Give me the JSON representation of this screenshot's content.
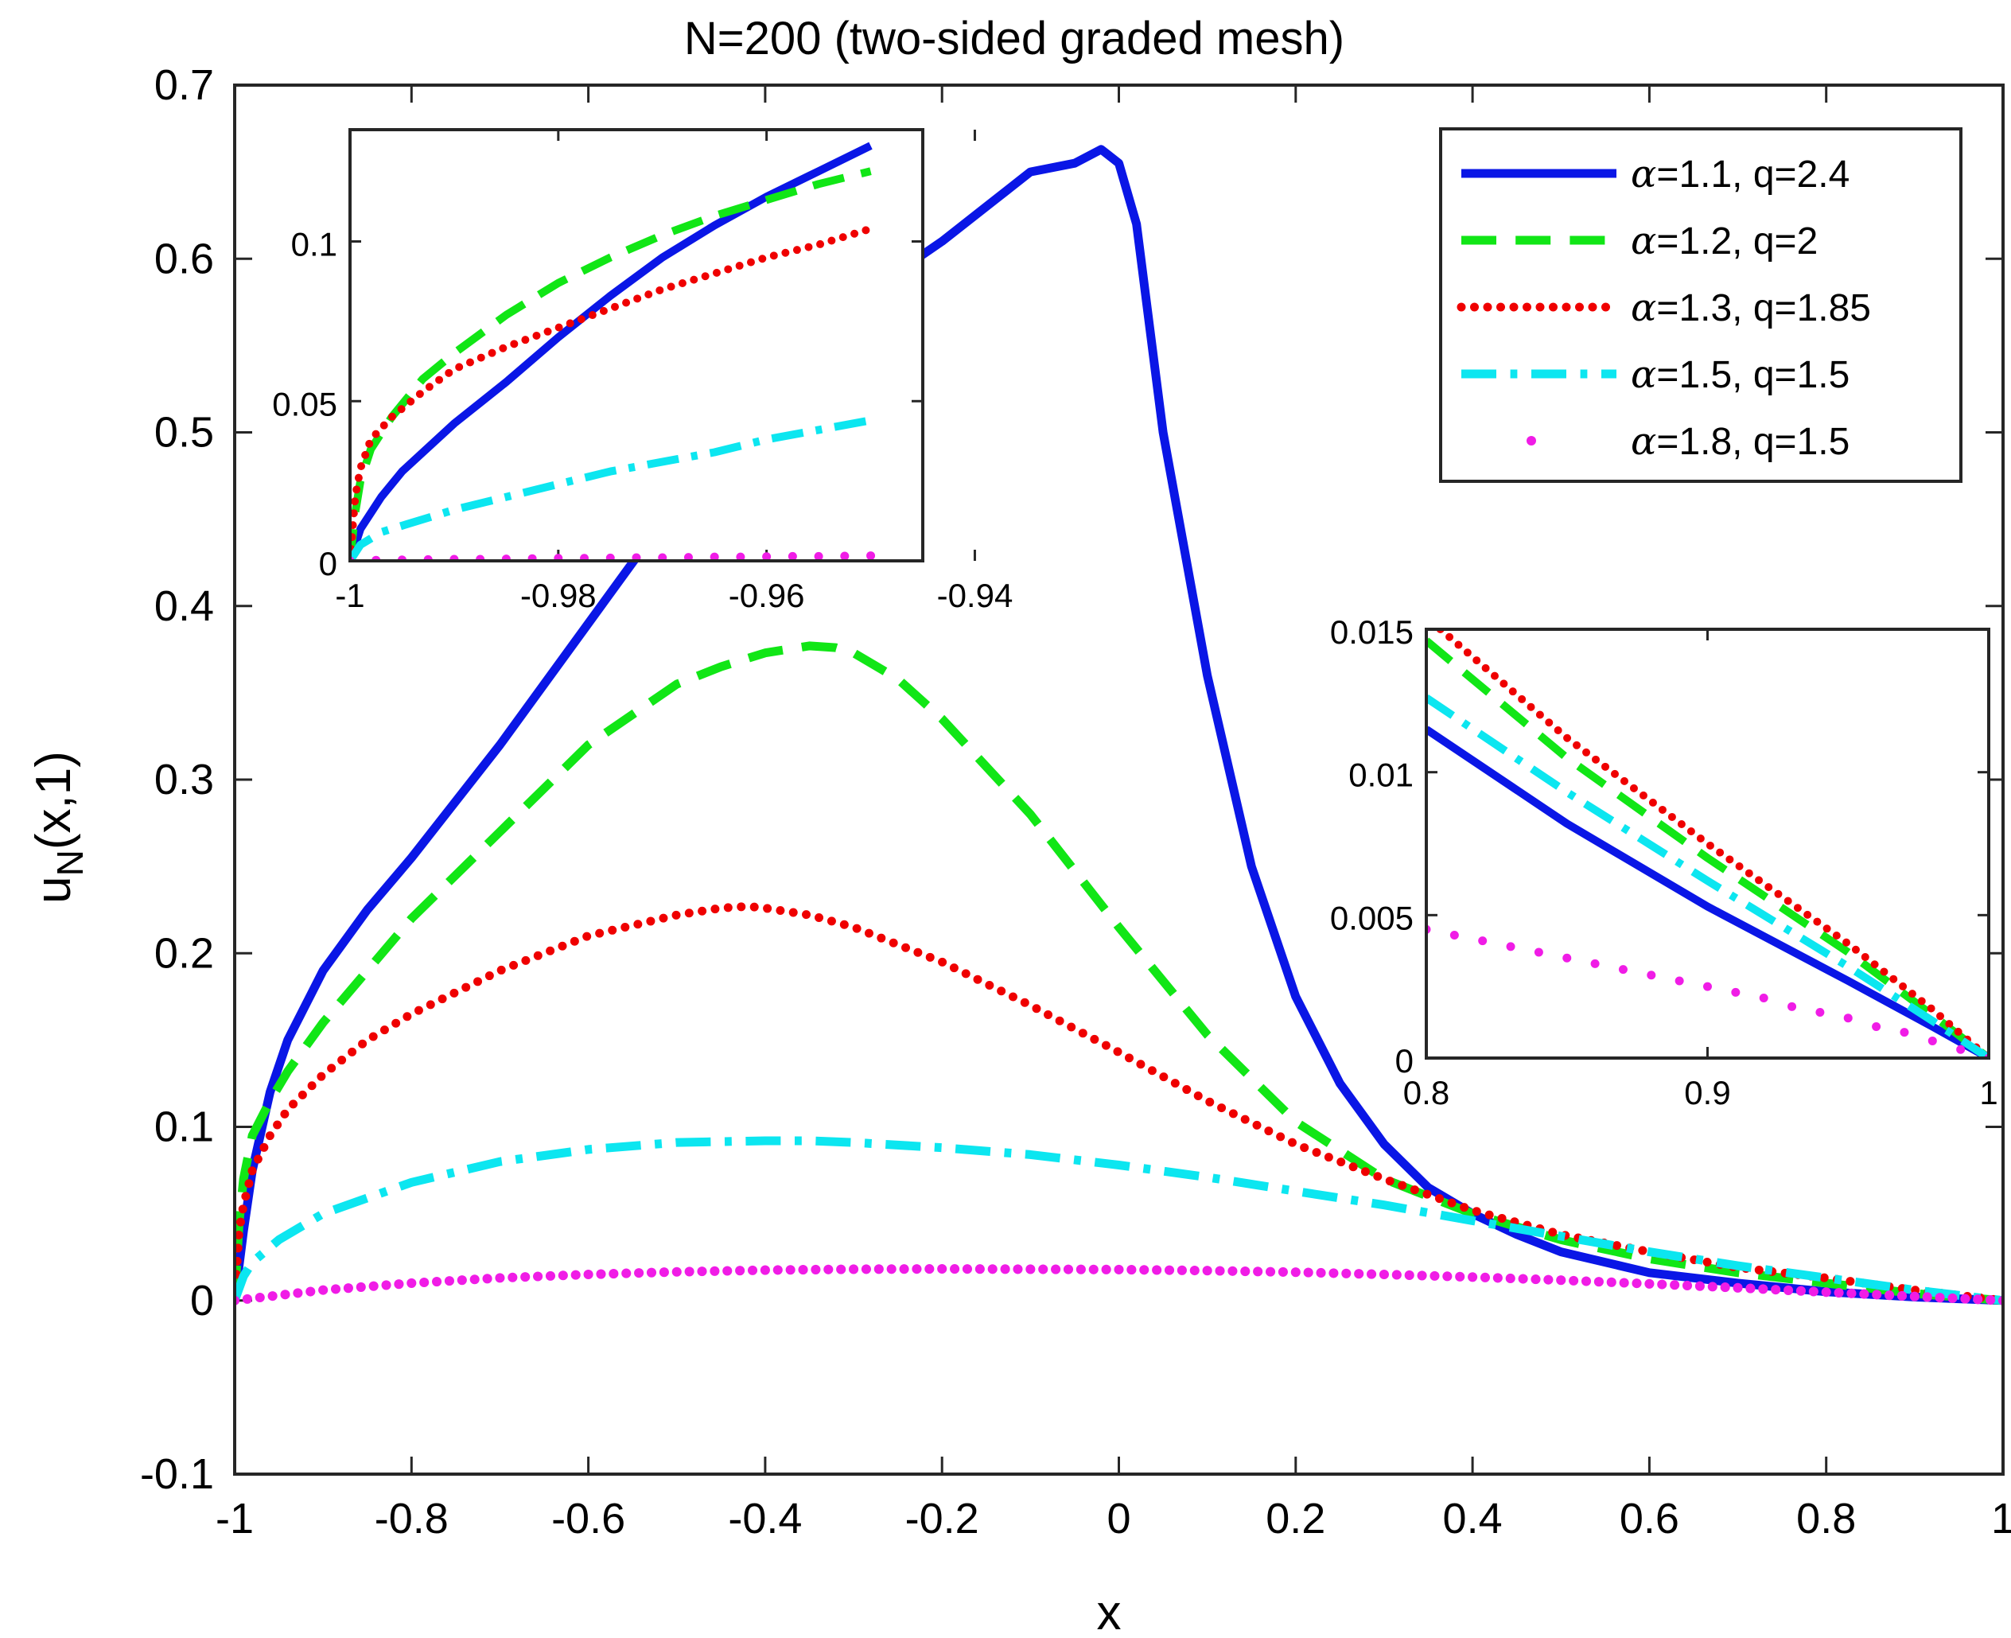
{
  "chart_data": {
    "type": "line",
    "title": "N=200 (two-sided graded mesh)",
    "xlabel": "x",
    "ylabel": "u",
    "ylabel_sub": "N",
    "ylabel_tail": "(x,1)",
    "xlim": [
      -1,
      1
    ],
    "ylim": [
      -0.1,
      0.7
    ],
    "xticks": [
      -1,
      -0.8,
      -0.6,
      -0.4,
      -0.2,
      0,
      0.2,
      0.4,
      0.6,
      0.8,
      1
    ],
    "xtick_labels": [
      "-1",
      "-0.8",
      "-0.6",
      "-0.4",
      "-0.2",
      "0",
      "0.2",
      "0.4",
      "0.6",
      "0.8",
      "1"
    ],
    "yticks": [
      -0.1,
      0,
      0.1,
      0.2,
      0.3,
      0.4,
      0.5,
      0.6,
      0.7
    ],
    "ytick_labels": [
      "-0.1",
      "0",
      "0.1",
      "0.2",
      "0.3",
      "0.4",
      "0.5",
      "0.6",
      "0.7"
    ],
    "legend_position": "top-right",
    "series": [
      {
        "name": "α=1.1, q=2.4",
        "legend_symbol": "α",
        "legend_rest": "=1.1, q=2.4",
        "color": "#0a16e6",
        "style": "solid",
        "x": [
          -1,
          -0.99,
          -0.98,
          -0.96,
          -0.94,
          -0.9,
          -0.85,
          -0.8,
          -0.7,
          -0.6,
          -0.5,
          -0.4,
          -0.3,
          -0.2,
          -0.1,
          -0.05,
          -0.02,
          0,
          0.02,
          0.05,
          0.1,
          0.15,
          0.2,
          0.25,
          0.3,
          0.35,
          0.4,
          0.45,
          0.5,
          0.6,
          0.7,
          0.8,
          0.9,
          0.95,
          1
        ],
        "y": [
          0,
          0.04,
          0.075,
          0.12,
          0.15,
          0.19,
          0.225,
          0.255,
          0.32,
          0.39,
          0.46,
          0.53,
          0.575,
          0.61,
          0.65,
          0.655,
          0.663,
          0.655,
          0.62,
          0.5,
          0.36,
          0.25,
          0.175,
          0.125,
          0.09,
          0.065,
          0.05,
          0.038,
          0.028,
          0.016,
          0.01,
          0.005,
          0.002,
          0.001,
          0
        ]
      },
      {
        "name": "α=1.2, q=2",
        "legend_symbol": "α",
        "legend_rest": "=1.2, q=2",
        "color": "#11e616",
        "style": "dashed",
        "x": [
          -1,
          -0.995,
          -0.99,
          -0.98,
          -0.96,
          -0.94,
          -0.9,
          -0.85,
          -0.8,
          -0.7,
          -0.6,
          -0.5,
          -0.45,
          -0.4,
          -0.35,
          -0.32,
          -0.3,
          -0.25,
          -0.2,
          -0.1,
          0,
          0.1,
          0.2,
          0.3,
          0.4,
          0.5,
          0.6,
          0.7,
          0.8,
          0.9,
          1
        ],
        "y": [
          0,
          0.045,
          0.07,
          0.095,
          0.115,
          0.132,
          0.16,
          0.19,
          0.22,
          0.27,
          0.32,
          0.355,
          0.365,
          0.373,
          0.377,
          0.376,
          0.373,
          0.358,
          0.335,
          0.28,
          0.215,
          0.153,
          0.103,
          0.07,
          0.05,
          0.035,
          0.024,
          0.016,
          0.01,
          0.004,
          0
        ]
      },
      {
        "name": "α=1.3, q=1.85",
        "legend_symbol": "α",
        "legend_rest": "=1.3, q=1.85",
        "color": "#ef0000",
        "style": "dotted",
        "x": [
          -1,
          -0.995,
          -0.99,
          -0.98,
          -0.96,
          -0.94,
          -0.9,
          -0.85,
          -0.8,
          -0.7,
          -0.6,
          -0.5,
          -0.45,
          -0.42,
          -0.4,
          -0.35,
          -0.3,
          -0.2,
          -0.1,
          0,
          0.1,
          0.2,
          0.3,
          0.4,
          0.5,
          0.6,
          0.7,
          0.8,
          0.9,
          1
        ],
        "y": [
          0,
          0.04,
          0.055,
          0.075,
          0.095,
          0.11,
          0.13,
          0.15,
          0.165,
          0.19,
          0.21,
          0.222,
          0.226,
          0.227,
          0.226,
          0.222,
          0.215,
          0.195,
          0.17,
          0.143,
          0.115,
          0.09,
          0.07,
          0.052,
          0.038,
          0.028,
          0.019,
          0.013,
          0.006,
          0
        ]
      },
      {
        "name": "α=1.5, q=1.5",
        "legend_symbol": "α",
        "legend_rest": "=1.5, q=1.5",
        "color": "#0ce6f0",
        "style": "dashdot",
        "x": [
          -1,
          -0.99,
          -0.98,
          -0.95,
          -0.9,
          -0.8,
          -0.7,
          -0.6,
          -0.5,
          -0.4,
          -0.35,
          -0.3,
          -0.2,
          -0.1,
          0,
          0.1,
          0.2,
          0.3,
          0.4,
          0.5,
          0.6,
          0.7,
          0.8,
          0.9,
          1
        ],
        "y": [
          0,
          0.014,
          0.022,
          0.035,
          0.05,
          0.068,
          0.08,
          0.087,
          0.091,
          0.092,
          0.092,
          0.091,
          0.088,
          0.084,
          0.078,
          0.071,
          0.063,
          0.055,
          0.046,
          0.037,
          0.028,
          0.02,
          0.013,
          0.006,
          0
        ]
      },
      {
        "name": "α=1.8, q=1.5",
        "legend_symbol": "α",
        "legend_rest": "=1.8, q=1.5",
        "color": "#f01ce6",
        "style": "markers",
        "x": [
          -1,
          -0.9,
          -0.8,
          -0.7,
          -0.6,
          -0.5,
          -0.4,
          -0.3,
          -0.2,
          -0.1,
          0,
          0.1,
          0.2,
          0.3,
          0.4,
          0.5,
          0.6,
          0.7,
          0.8,
          0.9,
          1
        ],
        "y": [
          0,
          0.006,
          0.01,
          0.013,
          0.015,
          0.0165,
          0.0175,
          0.018,
          0.0182,
          0.018,
          0.0178,
          0.0172,
          0.0163,
          0.015,
          0.0135,
          0.0117,
          0.0096,
          0.0073,
          0.0048,
          0.0023,
          0
        ]
      }
    ],
    "insets": [
      {
        "position": "upper-left",
        "xlim": [
          -1,
          -0.945
        ],
        "ylim": [
          0,
          0.135
        ],
        "xticks": [
          -1,
          -0.98,
          -0.96,
          -0.94
        ],
        "xtick_labels": [
          "-1",
          "-0.98",
          "-0.96",
          "-0.94"
        ],
        "yticks": [
          0,
          0.05,
          0.1
        ],
        "ytick_labels": [
          "0",
          "0.05",
          "0.1"
        ],
        "series": [
          {
            "x": [
              -1,
              -0.999,
              -0.997,
              -0.995,
              -0.99,
              -0.985,
              -0.98,
              -0.975,
              -0.97,
              -0.965,
              -0.96,
              -0.955,
              -0.95
            ],
            "y": [
              0,
              0.01,
              0.02,
              0.028,
              0.043,
              0.056,
              0.07,
              0.083,
              0.095,
              0.105,
              0.114,
              0.122,
              0.13
            ]
          },
          {
            "x": [
              -1,
              -0.9995,
              -0.999,
              -0.998,
              -0.996,
              -0.993,
              -0.99,
              -0.985,
              -0.98,
              -0.975,
              -0.97,
              -0.965,
              -0.96,
              -0.955,
              -0.95
            ],
            "y": [
              0,
              0.015,
              0.025,
              0.035,
              0.045,
              0.057,
              0.065,
              0.077,
              0.087,
              0.095,
              0.102,
              0.108,
              0.113,
              0.118,
              0.122
            ]
          },
          {
            "x": [
              -1,
              -0.9995,
              -0.999,
              -0.998,
              -0.996,
              -0.993,
              -0.99,
              -0.985,
              -0.98,
              -0.975,
              -0.97,
              -0.965,
              -0.96,
              -0.955,
              -0.95
            ],
            "y": [
              0,
              0.02,
              0.029,
              0.038,
              0.045,
              0.053,
              0.06,
              0.067,
              0.073,
              0.079,
              0.085,
              0.09,
              0.095,
              0.099,
              0.104
            ]
          },
          {
            "x": [
              -1,
              -0.999,
              -0.997,
              -0.995,
              -0.99,
              -0.985,
              -0.98,
              -0.975,
              -0.97,
              -0.965,
              -0.96,
              -0.955,
              -0.95
            ],
            "y": [
              0,
              0.005,
              0.009,
              0.011,
              0.016,
              0.02,
              0.024,
              0.028,
              0.031,
              0.034,
              0.038,
              0.041,
              0.044
            ]
          },
          {
            "x": [
              -1,
              -0.9975,
              -0.995,
              -0.9925,
              -0.99,
              -0.9875,
              -0.985,
              -0.9825,
              -0.98,
              -0.9775,
              -0.975,
              -0.9725,
              -0.97,
              -0.9675,
              -0.965,
              -0.9625,
              -0.96,
              -0.9575,
              -0.955,
              -0.9525,
              -0.95
            ],
            "y": [
              0,
              0.0002,
              0.0003,
              0.0004,
              0.0005,
              0.0005,
              0.0006,
              0.0007,
              0.0008,
              0.0008,
              0.0009,
              0.001,
              0.001,
              0.0011,
              0.0012,
              0.0012,
              0.0013,
              0.0014,
              0.0014,
              0.0015,
              0.0016
            ]
          }
        ]
      },
      {
        "position": "right",
        "xlim": [
          0.8,
          1
        ],
        "ylim": [
          0,
          0.015
        ],
        "xticks": [
          0.8,
          0.9,
          1
        ],
        "xtick_labels": [
          "0.8",
          "0.9",
          "1"
        ],
        "yticks": [
          0,
          0.005,
          0.01,
          0.015
        ],
        "ytick_labels": [
          "0",
          "0.005",
          "0.01",
          "0.015"
        ],
        "series": [
          {
            "x": [
              0.8,
              0.85,
              0.9,
              0.95,
              0.98,
              1
            ],
            "y": [
              0.0115,
              0.0082,
              0.0053,
              0.0027,
              0.0011,
              0
            ]
          },
          {
            "x": [
              0.8,
              0.85,
              0.9,
              0.95,
              0.98,
              1
            ],
            "y": [
              0.0146,
              0.0105,
              0.007,
              0.0037,
              0.0015,
              0
            ]
          },
          {
            "x": [
              0.805,
              0.85,
              0.9,
              0.95,
              0.98,
              1
            ],
            "y": [
              0.015,
              0.0112,
              0.0075,
              0.004,
              0.0017,
              0
            ]
          },
          {
            "x": [
              0.8,
              0.85,
              0.9,
              0.95,
              0.98,
              1
            ],
            "y": [
              0.0126,
              0.0093,
              0.0062,
              0.0032,
              0.0013,
              0
            ]
          },
          {
            "x": [
              0.8,
              0.81,
              0.82,
              0.83,
              0.84,
              0.85,
              0.86,
              0.87,
              0.88,
              0.89,
              0.9,
              0.91,
              0.92,
              0.93,
              0.94,
              0.95,
              0.96,
              0.97,
              0.98,
              0.99,
              1
            ],
            "y": [
              0.0045,
              0.0043,
              0.0041,
              0.0039,
              0.0037,
              0.0035,
              0.0033,
              0.0031,
              0.0029,
              0.0027,
              0.0025,
              0.0023,
              0.0021,
              0.0018,
              0.0016,
              0.0014,
              0.0011,
              0.0009,
              0.0006,
              0.0003,
              0
            ]
          }
        ]
      }
    ]
  }
}
